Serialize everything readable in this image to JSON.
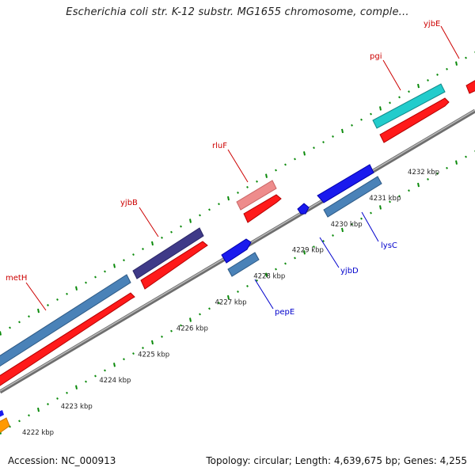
{
  "title": "Escherichia coli str. K-12 substr. MG1655 chromosome, comple...",
  "footer": {
    "accession": "Accession: NC_000913",
    "summary": "Topology: circular; Length: 4,639,675 bp; Genes: 4,255"
  },
  "colors": {
    "backbone": "#8c8c8c",
    "tick": "#0a8a0a",
    "label_forward": "#cc0000",
    "label_reverse": "#0000cc",
    "ruler_text": "#222222"
  },
  "ruler": {
    "labels": [
      "4222 kbp",
      "4223 kbp",
      "4224 kbp",
      "4225 kbp",
      "4226 kbp",
      "4227 kbp",
      "4228 kbp",
      "4229 kbp",
      "4230 kbp",
      "4231 kbp",
      "4232 kbp"
    ]
  },
  "genes": [
    {
      "name": "metH",
      "strand": "forward",
      "color": "#4a82b8"
    },
    {
      "name": "yjbB",
      "strand": "forward",
      "color": "#3f3a88"
    },
    {
      "name": "rluF",
      "strand": "forward",
      "color": "#ee8c8c"
    },
    {
      "name": "pgi",
      "strand": "forward",
      "color": "#22cccc"
    },
    {
      "name": "yjbE",
      "strand": "forward",
      "color": "#ff1a1a"
    },
    {
      "name": "pepE",
      "strand": "reverse",
      "color": "#4a82b8"
    },
    {
      "name": "yjbD",
      "strand": "reverse",
      "color": "#1a1aee"
    },
    {
      "name": "lysC",
      "strand": "reverse",
      "color": "#4a82b8"
    }
  ]
}
